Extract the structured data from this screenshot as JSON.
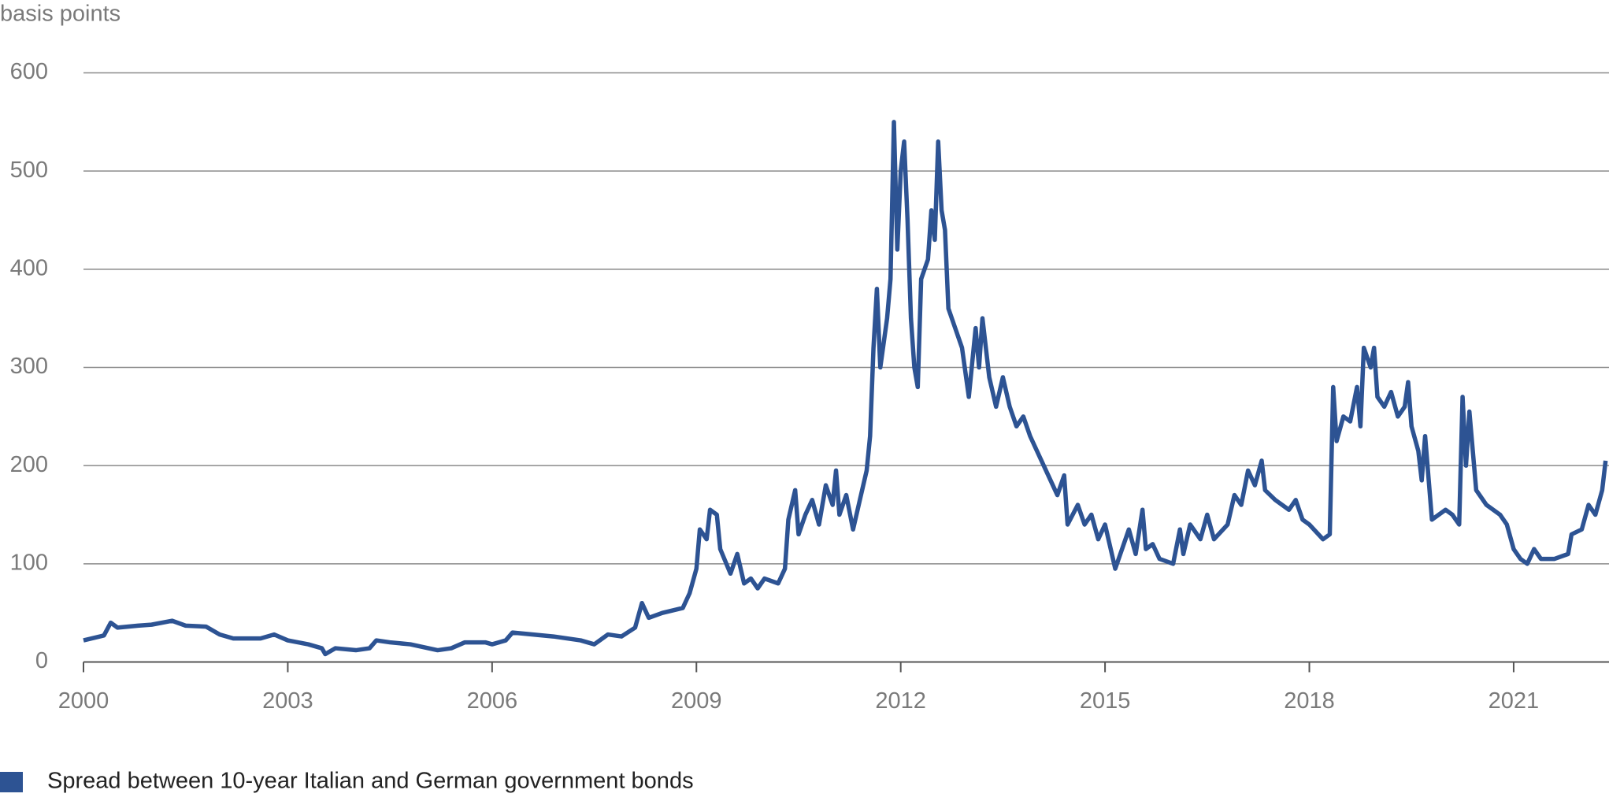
{
  "chart_data": {
    "type": "line",
    "y_label": "basis points",
    "xlim": [
      2000,
      2022.4
    ],
    "xticks": [
      2000,
      2003,
      2006,
      2009,
      2012,
      2015,
      2018,
      2021
    ],
    "ylim": [
      0,
      600
    ],
    "yticks": [
      0,
      100,
      200,
      300,
      400,
      500,
      600
    ],
    "grid": true,
    "legend": "bottom-left",
    "x": [
      2000.0,
      2000.3,
      2000.4,
      2000.5,
      2000.8,
      2001.0,
      2001.3,
      2001.5,
      2001.8,
      2002.0,
      2002.2,
      2002.6,
      2002.8,
      2003.0,
      2003.3,
      2003.5,
      2003.55,
      2003.7,
      2004.0,
      2004.2,
      2004.3,
      2004.5,
      2004.8,
      2005.0,
      2005.2,
      2005.4,
      2005.6,
      2005.9,
      2006.0,
      2006.2,
      2006.3,
      2006.6,
      2006.9,
      2007.0,
      2007.3,
      2007.5,
      2007.7,
      2007.9,
      2008.1,
      2008.2,
      2008.3,
      2008.5,
      2008.8,
      2008.9,
      2009.0,
      2009.05,
      2009.15,
      2009.2,
      2009.3,
      2009.35,
      2009.5,
      2009.6,
      2009.7,
      2009.8,
      2009.9,
      2010.0,
      2010.2,
      2010.3,
      2010.35,
      2010.45,
      2010.5,
      2010.6,
      2010.7,
      2010.8,
      2010.9,
      2011.0,
      2011.05,
      2011.1,
      2011.2,
      2011.3,
      2011.4,
      2011.5,
      2011.55,
      2011.6,
      2011.65,
      2011.7,
      2011.8,
      2011.85,
      2011.9,
      2011.95,
      2012.0,
      2012.05,
      2012.1,
      2012.15,
      2012.2,
      2012.25,
      2012.3,
      2012.4,
      2012.45,
      2012.5,
      2012.55,
      2012.6,
      2012.65,
      2012.7,
      2012.8,
      2012.9,
      2013.0,
      2013.1,
      2013.15,
      2013.2,
      2013.3,
      2013.4,
      2013.5,
      2013.6,
      2013.7,
      2013.8,
      2013.9,
      2014.0,
      2014.1,
      2014.3,
      2014.4,
      2014.45,
      2014.6,
      2014.7,
      2014.8,
      2014.9,
      2015.0,
      2015.1,
      2015.15,
      2015.25,
      2015.35,
      2015.45,
      2015.55,
      2015.6,
      2015.7,
      2015.8,
      2016.0,
      2016.1,
      2016.15,
      2016.25,
      2016.4,
      2016.5,
      2016.6,
      2016.8,
      2016.9,
      2017.0,
      2017.1,
      2017.2,
      2017.3,
      2017.35,
      2017.5,
      2017.7,
      2017.8,
      2017.9,
      2018.0,
      2018.2,
      2018.3,
      2018.35,
      2018.4,
      2018.5,
      2018.6,
      2018.7,
      2018.75,
      2018.8,
      2018.9,
      2018.95,
      2019.0,
      2019.1,
      2019.2,
      2019.3,
      2019.4,
      2019.45,
      2019.5,
      2019.6,
      2019.65,
      2019.7,
      2019.8,
      2019.9,
      2020.0,
      2020.1,
      2020.2,
      2020.25,
      2020.3,
      2020.35,
      2020.45,
      2020.6,
      2020.8,
      2020.9,
      2021.0,
      2021.1,
      2021.2,
      2021.3,
      2021.4,
      2021.6,
      2021.8,
      2021.85,
      2022.0,
      2022.1,
      2022.2,
      2022.3,
      2022.35
    ],
    "series": [
      {
        "name": "Spread between 10-year Italian and German government bonds",
        "color": "#2d5393",
        "values": [
          22,
          27,
          40,
          35,
          37,
          38,
          42,
          37,
          36,
          28,
          24,
          24,
          28,
          22,
          18,
          14,
          8,
          14,
          12,
          14,
          22,
          20,
          18,
          15,
          12,
          14,
          20,
          20,
          18,
          22,
          30,
          28,
          26,
          25,
          22,
          18,
          28,
          26,
          35,
          60,
          45,
          50,
          55,
          70,
          95,
          135,
          125,
          155,
          150,
          115,
          90,
          110,
          80,
          85,
          75,
          85,
          80,
          95,
          145,
          175,
          130,
          150,
          165,
          140,
          180,
          160,
          195,
          150,
          170,
          135,
          165,
          195,
          230,
          320,
          380,
          300,
          350,
          390,
          550,
          420,
          500,
          530,
          450,
          350,
          300,
          280,
          390,
          410,
          460,
          430,
          530,
          460,
          440,
          360,
          340,
          320,
          270,
          340,
          300,
          350,
          290,
          260,
          290,
          260,
          240,
          250,
          230,
          215,
          200,
          170,
          190,
          140,
          160,
          140,
          150,
          125,
          140,
          110,
          95,
          115,
          135,
          110,
          155,
          115,
          120,
          105,
          100,
          135,
          110,
          140,
          125,
          150,
          125,
          140,
          170,
          160,
          195,
          180,
          205,
          175,
          165,
          155,
          165,
          145,
          140,
          125,
          130,
          280,
          225,
          250,
          245,
          280,
          240,
          320,
          300,
          320,
          270,
          260,
          275,
          250,
          260,
          285,
          240,
          215,
          185,
          230,
          145,
          150,
          155,
          150,
          140,
          270,
          200,
          255,
          175,
          160,
          150,
          140,
          115,
          105,
          100,
          115,
          105,
          105,
          110,
          130,
          135,
          160,
          150,
          175,
          205
        ]
      }
    ]
  }
}
